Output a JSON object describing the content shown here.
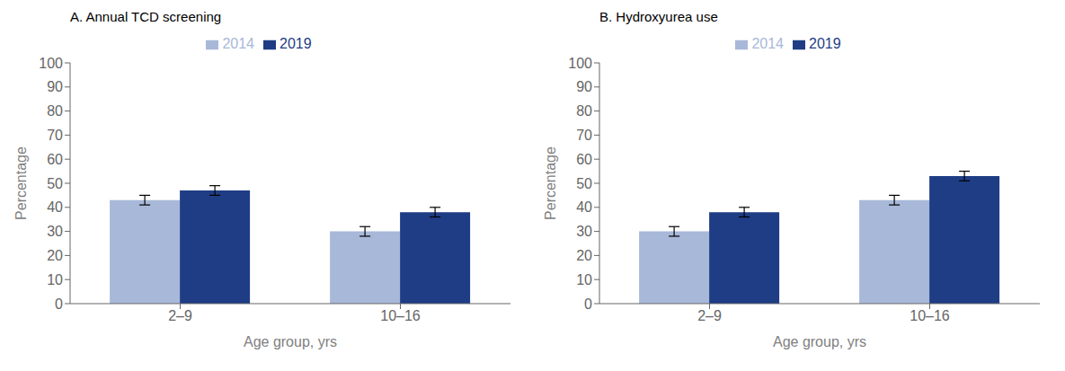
{
  "chart_data": [
    {
      "type": "bar",
      "title": "A. Annual TCD screening",
      "categories": [
        "2–9",
        "10–16"
      ],
      "series": [
        {
          "name": "2014",
          "color": "#a8b8d8",
          "values": [
            43,
            30
          ],
          "errors": [
            2,
            2
          ]
        },
        {
          "name": "2019",
          "color": "#1f3d85",
          "values": [
            47,
            38
          ],
          "errors": [
            2,
            2
          ]
        }
      ],
      "xlabel": "Age group, yrs",
      "ylabel": "Percentage",
      "ylim": [
        0,
        100
      ],
      "yticks": [
        0,
        10,
        20,
        30,
        40,
        50,
        60,
        70,
        80,
        90,
        100
      ],
      "grid": false,
      "legend": "upper center"
    },
    {
      "type": "bar",
      "title": "B. Hydroxyurea use",
      "categories": [
        "2–9",
        "10–16"
      ],
      "series": [
        {
          "name": "2014",
          "color": "#a8b8d8",
          "values": [
            30,
            43
          ],
          "errors": [
            2,
            2
          ]
        },
        {
          "name": "2019",
          "color": "#1f3d85",
          "values": [
            38,
            53
          ],
          "errors": [
            2,
            2
          ]
        }
      ],
      "xlabel": "Age group, yrs",
      "ylabel": "Percentage",
      "ylim": [
        0,
        100
      ],
      "yticks": [
        0,
        10,
        20,
        30,
        40,
        50,
        60,
        70,
        80,
        90,
        100
      ],
      "grid": false,
      "legend": "upper center"
    }
  ]
}
